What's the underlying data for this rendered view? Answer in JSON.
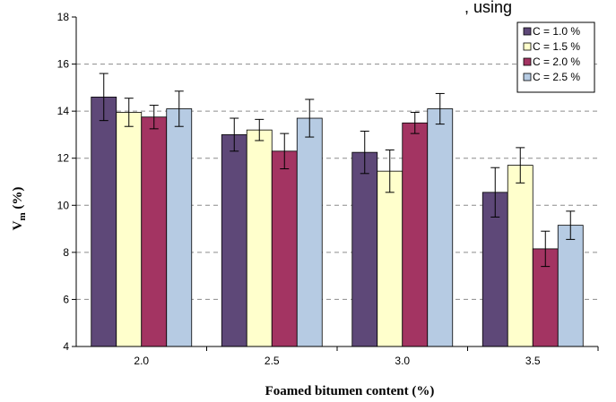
{
  "top_fragment": ", using",
  "chart_data": {
    "type": "bar",
    "title": "",
    "xlabel": "Foamed bitumen content (%)",
    "ylabel": "V",
    "ylabel_sub": "m",
    "ylabel_suffix": " (%)",
    "categories": [
      "2.0",
      "2.5",
      "3.0",
      "3.5"
    ],
    "ylim": [
      4,
      18
    ],
    "yticks": [
      "4",
      "6",
      "8",
      "10",
      "12",
      "14",
      "16",
      "18"
    ],
    "grid": true,
    "legend_position": "top-right",
    "series": [
      {
        "name": "C = 1.0 %",
        "color": "#5e4878",
        "values": [
          14.6,
          13.0,
          12.25,
          10.55
        ],
        "errors": [
          1.0,
          0.7,
          0.9,
          1.05
        ]
      },
      {
        "name": "C = 1.5 %",
        "color": "#ffffcc",
        "values": [
          13.95,
          13.2,
          11.45,
          11.7
        ],
        "errors": [
          0.6,
          0.45,
          0.9,
          0.75
        ]
      },
      {
        "name": "C = 2.0 %",
        "color": "#a33462",
        "values": [
          13.75,
          12.3,
          13.5,
          8.15
        ],
        "errors": [
          0.5,
          0.75,
          0.45,
          0.75
        ]
      },
      {
        "name": "C = 2.5 %",
        "color": "#b6cbe3",
        "values": [
          14.1,
          13.7,
          14.1,
          9.15
        ],
        "errors": [
          0.75,
          0.8,
          0.65,
          0.6
        ]
      }
    ]
  }
}
